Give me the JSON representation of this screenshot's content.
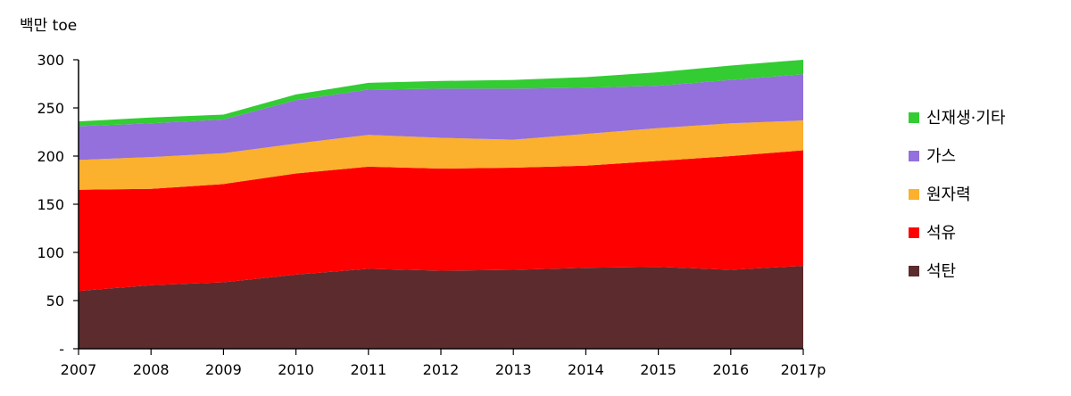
{
  "chart_data": {
    "type": "area",
    "stacked": true,
    "unit_label": "백만 toe",
    "categories": [
      "2007",
      "2008",
      "2009",
      "2010",
      "2011",
      "2012",
      "2013",
      "2014",
      "2015",
      "2016",
      "2017p"
    ],
    "y_ticks": [
      {
        "value": 0,
        "label": "-"
      },
      {
        "value": 50,
        "label": "50"
      },
      {
        "value": 100,
        "label": "100"
      },
      {
        "value": 150,
        "label": "150"
      },
      {
        "value": 200,
        "label": "200"
      },
      {
        "value": 250,
        "label": "250"
      },
      {
        "value": 300,
        "label": "300"
      }
    ],
    "ylim": [
      0,
      300
    ],
    "grid": false,
    "legend_position": "right",
    "series": [
      {
        "name": "석탄",
        "color": "#5c2b2e",
        "values": [
          60,
          66,
          69,
          77,
          83,
          81,
          82,
          84,
          85,
          82,
          86
        ]
      },
      {
        "name": "석유",
        "color": "#ff0000",
        "values": [
          105,
          100,
          102,
          105,
          106,
          106,
          106,
          106,
          110,
          118,
          120
        ]
      },
      {
        "name": "원자력",
        "color": "#fbb02e",
        "values": [
          31,
          33,
          32,
          31,
          33,
          32,
          29,
          33,
          34,
          34,
          31
        ]
      },
      {
        "name": "가스",
        "color": "#9370db",
        "values": [
          35,
          35,
          35,
          45,
          47,
          51,
          53,
          48,
          44,
          45,
          48
        ]
      },
      {
        "name": "신재생·기타",
        "color": "#33cc33",
        "values": [
          5,
          6,
          5,
          6,
          7,
          8,
          9,
          11,
          14,
          15,
          15
        ]
      }
    ]
  }
}
